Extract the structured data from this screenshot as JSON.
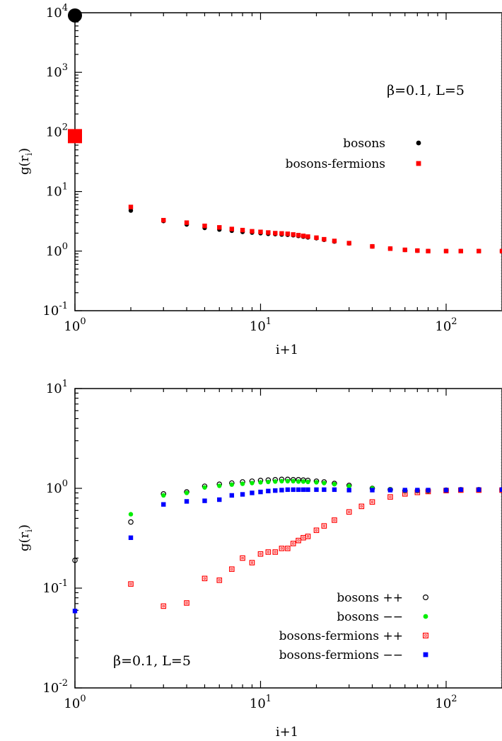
{
  "chart_data": [
    {
      "type": "scatter",
      "title": "",
      "xlabel": "i+1",
      "ylabel": "g(r_i)",
      "x_scale": "log",
      "y_scale": "log",
      "xlim": [
        1,
        200
      ],
      "ylim": [
        0.1,
        10000
      ],
      "x_ticks": [
        1,
        10,
        100
      ],
      "x_tick_labels": [
        {
          "base": "10",
          "exp": "0"
        },
        {
          "base": "10",
          "exp": "1"
        },
        {
          "base": "10",
          "exp": "2"
        }
      ],
      "y_ticks": [
        0.1,
        1,
        10,
        100,
        1000,
        10000
      ],
      "y_tick_labels": [
        {
          "base": "10",
          "exp": "-1"
        },
        {
          "base": "10",
          "exp": "0"
        },
        {
          "base": "10",
          "exp": "1"
        },
        {
          "base": "10",
          "exp": "2"
        },
        {
          "base": "10",
          "exp": "3"
        },
        {
          "base": "10",
          "exp": "4"
        }
      ],
      "annotation": "β=0.1, L=5",
      "legend_position": "top-right",
      "series": [
        {
          "name": "bosons",
          "marker": "filled-circle",
          "color": "#000000",
          "x": [
            1,
            2,
            3,
            4,
            5,
            6,
            7,
            8,
            9,
            10,
            11,
            12,
            13,
            14,
            15,
            16,
            17,
            18,
            20,
            22,
            25,
            30,
            40,
            50,
            60,
            70,
            80,
            100,
            120,
            150,
            200
          ],
          "y": [
            9000,
            4.8,
            3.2,
            2.8,
            2.45,
            2.3,
            2.2,
            2.1,
            2.05,
            2.0,
            1.95,
            1.93,
            1.9,
            1.88,
            1.85,
            1.8,
            1.75,
            1.7,
            1.65,
            1.55,
            1.45,
            1.35,
            1.2,
            1.1,
            1.05,
            1.02,
            1.0,
            1.0,
            1.0,
            1.0,
            1.0
          ]
        },
        {
          "name": "bosons-fermions",
          "marker": "filled-square",
          "color": "#ff0000",
          "x": [
            1,
            2,
            3,
            4,
            5,
            6,
            7,
            8,
            9,
            10,
            11,
            12,
            13,
            14,
            15,
            16,
            17,
            18,
            20,
            22,
            25,
            30,
            40,
            50,
            60,
            70,
            80,
            100,
            120,
            150,
            200
          ],
          "y": [
            85,
            5.5,
            3.3,
            3.0,
            2.65,
            2.5,
            2.35,
            2.25,
            2.15,
            2.1,
            2.05,
            2.0,
            1.98,
            1.95,
            1.9,
            1.85,
            1.8,
            1.75,
            1.68,
            1.58,
            1.48,
            1.36,
            1.2,
            1.1,
            1.05,
            1.02,
            1.0,
            1.0,
            1.0,
            1.0,
            1.0
          ]
        }
      ]
    },
    {
      "type": "scatter",
      "title": "",
      "xlabel": "i+1",
      "ylabel": "g(r_i)",
      "x_scale": "log",
      "y_scale": "log",
      "xlim": [
        1,
        200
      ],
      "ylim": [
        0.01,
        10
      ],
      "x_ticks": [
        1,
        10,
        100
      ],
      "x_tick_labels": [
        {
          "base": "10",
          "exp": "0"
        },
        {
          "base": "10",
          "exp": "1"
        },
        {
          "base": "10",
          "exp": "2"
        }
      ],
      "y_ticks": [
        0.01,
        0.1,
        1,
        10
      ],
      "y_tick_labels": [
        {
          "base": "10",
          "exp": "-2"
        },
        {
          "base": "10",
          "exp": "-1"
        },
        {
          "base": "10",
          "exp": "0"
        },
        {
          "base": "10",
          "exp": "1"
        }
      ],
      "annotation": "β=0.1, L=5",
      "legend_position": "bottom-right",
      "series": [
        {
          "name": "bosons ++",
          "marker": "open-circle",
          "color": "#000000",
          "x": [
            1,
            2,
            3,
            4,
            5,
            6,
            7,
            8,
            9,
            10,
            11,
            12,
            13,
            14,
            15,
            16,
            17,
            18,
            20,
            22,
            25,
            30,
            40,
            50,
            60,
            70,
            80,
            100,
            120,
            150,
            200
          ],
          "y": [
            0.19,
            0.46,
            0.88,
            0.92,
            1.05,
            1.1,
            1.13,
            1.16,
            1.18,
            1.2,
            1.21,
            1.22,
            1.23,
            1.23,
            1.22,
            1.22,
            1.21,
            1.2,
            1.18,
            1.16,
            1.12,
            1.07,
            1.0,
            0.97,
            0.95,
            0.95,
            0.95,
            0.96,
            0.97,
            0.97,
            0.97
          ]
        },
        {
          "name": "bosons −−",
          "marker": "filled-circle",
          "color": "#00ee00",
          "x": [
            2,
            3,
            4,
            5,
            6,
            7,
            8,
            9,
            10,
            11,
            12,
            13,
            14,
            15,
            16,
            17,
            18,
            20,
            22,
            25,
            30,
            40,
            50,
            60,
            70,
            80,
            100,
            120,
            150,
            200
          ],
          "y": [
            0.55,
            0.85,
            0.9,
            1.02,
            1.06,
            1.09,
            1.11,
            1.13,
            1.15,
            1.16,
            1.17,
            1.18,
            1.18,
            1.18,
            1.17,
            1.17,
            1.16,
            1.15,
            1.13,
            1.1,
            1.05,
            1.0,
            0.97,
            0.95,
            0.95,
            0.95,
            0.96,
            0.97,
            0.97,
            0.97
          ]
        },
        {
          "name": "bosons-fermions ++",
          "marker": "open-square",
          "color": "#ff0000",
          "x": [
            2,
            3,
            4,
            5,
            6,
            7,
            8,
            9,
            10,
            11,
            12,
            13,
            14,
            15,
            16,
            17,
            18,
            20,
            22,
            25,
            30,
            35,
            40,
            50,
            60,
            70,
            80,
            100,
            120,
            150,
            200
          ],
          "y": [
            0.11,
            0.066,
            0.071,
            0.125,
            0.12,
            0.155,
            0.2,
            0.18,
            0.22,
            0.23,
            0.23,
            0.25,
            0.25,
            0.28,
            0.3,
            0.32,
            0.33,
            0.38,
            0.42,
            0.48,
            0.58,
            0.66,
            0.73,
            0.82,
            0.88,
            0.91,
            0.93,
            0.95,
            0.96,
            0.96,
            0.96
          ]
        },
        {
          "name": "bosons-fermions −−",
          "marker": "filled-square",
          "color": "#0000ff",
          "x": [
            1,
            2,
            3,
            4,
            5,
            6,
            7,
            8,
            9,
            10,
            11,
            12,
            13,
            14,
            15,
            16,
            17,
            18,
            20,
            22,
            25,
            30,
            40,
            50,
            60,
            70,
            80,
            100,
            120,
            150,
            200
          ],
          "y": [
            0.059,
            0.32,
            0.69,
            0.74,
            0.75,
            0.77,
            0.85,
            0.87,
            0.9,
            0.92,
            0.94,
            0.95,
            0.96,
            0.97,
            0.97,
            0.97,
            0.97,
            0.97,
            0.97,
            0.97,
            0.97,
            0.96,
            0.96,
            0.96,
            0.96,
            0.96,
            0.96,
            0.96,
            0.97,
            0.97,
            0.97
          ]
        }
      ]
    }
  ]
}
